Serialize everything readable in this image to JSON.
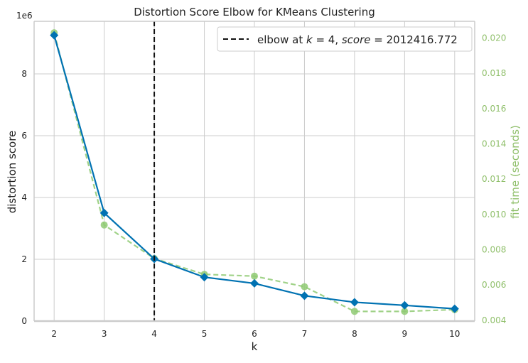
{
  "chart_data": {
    "type": "line",
    "title": "Distortion Score Elbow for KMeans Clustering",
    "xlabel": "k",
    "ylabel": "distortion score",
    "y2label": "fit time (seconds)",
    "y_offset_label": "1e6",
    "x": [
      2,
      3,
      4,
      5,
      6,
      7,
      8,
      9,
      10
    ],
    "xlim": [
      1.6,
      10.4
    ],
    "ylim": [
      0,
      9700000
    ],
    "y2lim": [
      0.00395,
      0.02095
    ],
    "yticks": [
      0,
      2000000,
      4000000,
      6000000,
      8000000
    ],
    "ytick_labels": [
      "0",
      "2",
      "4",
      "6",
      "8"
    ],
    "y2ticks": [
      0.004,
      0.006,
      0.008,
      0.01,
      0.012,
      0.014,
      0.016,
      0.018,
      0.02
    ],
    "y2tick_labels": [
      "0.004",
      "0.006",
      "0.008",
      "0.010",
      "0.012",
      "0.014",
      "0.016",
      "0.018",
      "0.020"
    ],
    "grid": true,
    "legend_position": "top-right",
    "series": [
      {
        "axis": "left",
        "color": "#0072b2",
        "marker": "diamond",
        "values": [
          9250000,
          3500000,
          2012416.772,
          1420000,
          1220000,
          820000,
          610000,
          510000,
          400000
        ]
      },
      {
        "axis": "right",
        "color": "#8fca73",
        "marker": "circle",
        "linestyle": "dashed",
        "values": [
          0.0203,
          0.0094,
          0.0075,
          0.0066,
          0.0065,
          0.0059,
          0.0045,
          0.0045,
          0.0046
        ]
      }
    ],
    "elbow": {
      "k": 4,
      "legend_prefix": "elbow at ",
      "legend_k": "k",
      "legend_mid": " = 4, ",
      "legend_score": "score",
      "legend_suffix": " = 2012416.772"
    }
  },
  "colors": {
    "primary_line": "#0072b2",
    "fit_time": "#8fca73",
    "fit_time_text": "#8fbf6a",
    "grid": "#cccccc",
    "elbow_line": "#111111"
  }
}
